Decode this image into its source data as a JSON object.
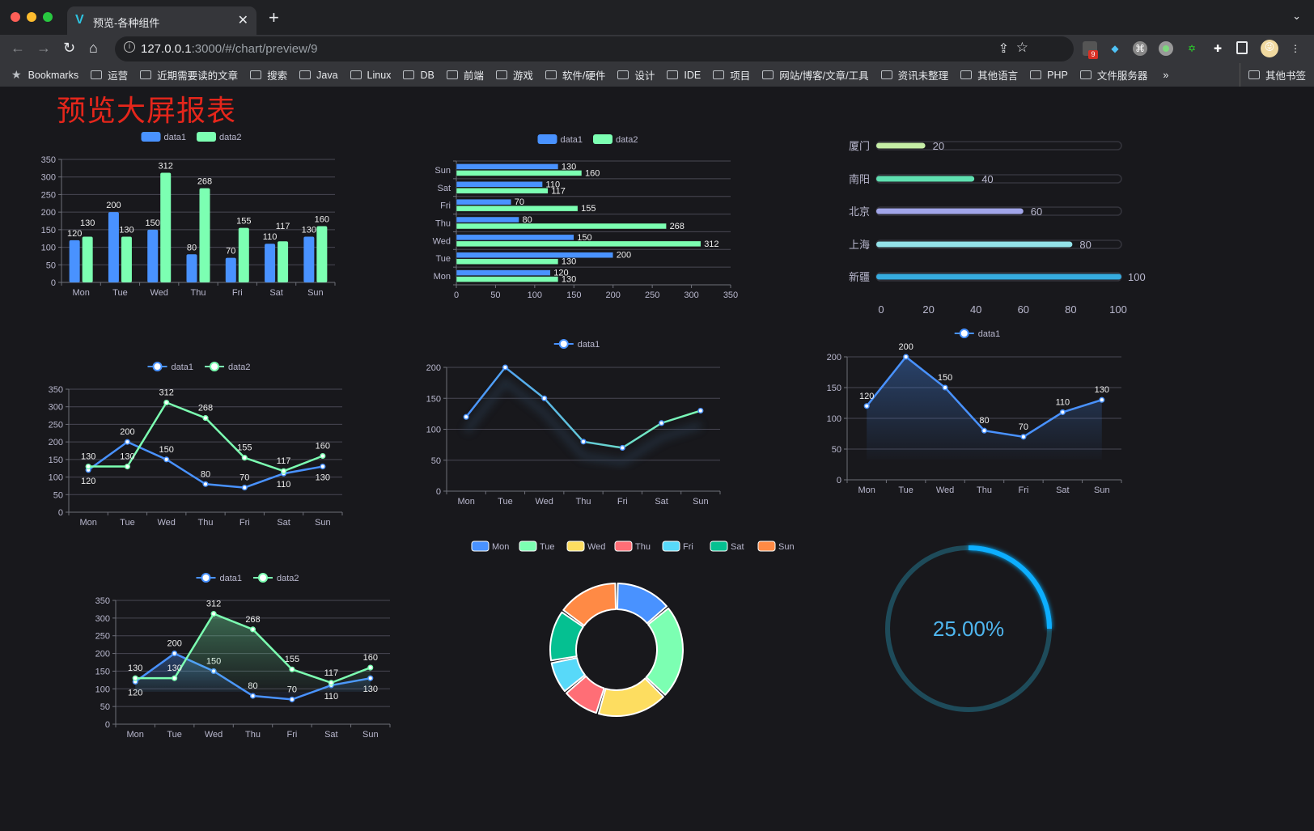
{
  "browser": {
    "tab_title": "预览-各种组件",
    "url_host": "127.0.0.1",
    "url_rest": ":3000/#/chart/preview/9",
    "extension_badge": "9",
    "bookmarks_label": "Bookmarks",
    "bookmarks": [
      "运营",
      "近期需要读的文章",
      "搜索",
      "Java",
      "Linux",
      "DB",
      "前端",
      "游戏",
      "软件/硬件",
      "设计",
      "IDE",
      "项目",
      "网站/博客/文章/工具",
      "资讯未整理",
      "其他语言",
      "PHP",
      "文件服务器"
    ],
    "more": "»",
    "other_bookmarks": "其他书签"
  },
  "page": {
    "title": "预览大屏报表"
  },
  "colors": {
    "blue": "#4992ff",
    "green": "#7cffb2",
    "yellow": "#fddd60",
    "red": "#ff6e76",
    "cyan": "#58d9f9",
    "teal": "#05c091",
    "orange": "#ff8a45",
    "title_red": "#e5261b",
    "gauge": "#10aeff"
  },
  "chart_data": [
    {
      "type": "bar",
      "categories": [
        "Mon",
        "Tue",
        "Wed",
        "Thu",
        "Fri",
        "Sat",
        "Sun"
      ],
      "ylim": [
        0,
        350
      ],
      "yticks": [
        0,
        50,
        100,
        150,
        200,
        250,
        300,
        350
      ],
      "legend": "top",
      "grid": true,
      "series": [
        {
          "name": "data1",
          "values": [
            120,
            200,
            150,
            80,
            70,
            110,
            130
          ]
        },
        {
          "name": "data2",
          "values": [
            130,
            130,
            312,
            268,
            155,
            117,
            160
          ]
        }
      ]
    },
    {
      "type": "bar",
      "orientation": "horizontal",
      "categories": [
        "Mon",
        "Tue",
        "Wed",
        "Thu",
        "Fri",
        "Sat",
        "Sun"
      ],
      "xlim": [
        0,
        350
      ],
      "xticks": [
        0,
        50,
        100,
        150,
        200,
        250,
        300,
        350
      ],
      "legend": "top",
      "grid": true,
      "series": [
        {
          "name": "data1",
          "values": [
            120,
            200,
            150,
            80,
            70,
            110,
            130
          ]
        },
        {
          "name": "data2",
          "values": [
            130,
            130,
            312,
            268,
            155,
            117,
            160
          ]
        }
      ]
    },
    {
      "type": "bar",
      "orientation": "horizontal",
      "style": "progress",
      "categories": [
        "厦门",
        "南阳",
        "北京",
        "上海",
        "新疆"
      ],
      "values": [
        20,
        40,
        60,
        80,
        100
      ],
      "xlim": [
        0,
        100
      ],
      "xticks": [
        0,
        20,
        40,
        60,
        80,
        100
      ],
      "colors": [
        "#c6eea6",
        "#5fdfb0",
        "#a2a6ea",
        "#94e3ea",
        "#36ace0"
      ]
    },
    {
      "type": "line",
      "categories": [
        "Mon",
        "Tue",
        "Wed",
        "Thu",
        "Fri",
        "Sat",
        "Sun"
      ],
      "ylim": [
        0,
        350
      ],
      "yticks": [
        0,
        50,
        100,
        150,
        200,
        250,
        300,
        350
      ],
      "legend": "top",
      "grid": true,
      "series": [
        {
          "name": "data1",
          "values": [
            120,
            200,
            150,
            80,
            70,
            110,
            130
          ]
        },
        {
          "name": "data2",
          "values": [
            130,
            130,
            312,
            268,
            155,
            117,
            160
          ]
        }
      ]
    },
    {
      "type": "line",
      "style": "gradient",
      "categories": [
        "Mon",
        "Tue",
        "Wed",
        "Thu",
        "Fri",
        "Sat",
        "Sun"
      ],
      "ylim": [
        0,
        200
      ],
      "yticks": [
        0,
        50,
        100,
        150,
        200
      ],
      "legend": "top",
      "grid": true,
      "series": [
        {
          "name": "data1",
          "values": [
            120,
            200,
            150,
            80,
            70,
            110,
            130
          ]
        }
      ]
    },
    {
      "type": "area",
      "categories": [
        "Mon",
        "Tue",
        "Wed",
        "Thu",
        "Fri",
        "Sat",
        "Sun"
      ],
      "ylim": [
        0,
        200
      ],
      "yticks": [
        0,
        50,
        100,
        150,
        200
      ],
      "legend": "top",
      "grid": true,
      "series": [
        {
          "name": "data1",
          "values": [
            120,
            200,
            150,
            80,
            70,
            110,
            130
          ]
        }
      ]
    },
    {
      "type": "area",
      "categories": [
        "Mon",
        "Tue",
        "Wed",
        "Thu",
        "Fri",
        "Sat",
        "Sun"
      ],
      "ylim": [
        0,
        350
      ],
      "yticks": [
        0,
        50,
        100,
        150,
        200,
        250,
        300,
        350
      ],
      "legend": "top",
      "grid": true,
      "series": [
        {
          "name": "data1",
          "values": [
            120,
            200,
            150,
            80,
            70,
            110,
            130
          ]
        },
        {
          "name": "data2",
          "values": [
            130,
            130,
            312,
            268,
            155,
            117,
            160
          ]
        }
      ]
    },
    {
      "type": "pie",
      "style": "donut",
      "legend": "top",
      "categories": [
        "Mon",
        "Tue",
        "Wed",
        "Thu",
        "Fri",
        "Sat",
        "Sun"
      ],
      "values": [
        120,
        200,
        150,
        80,
        70,
        110,
        130
      ]
    },
    {
      "type": "gauge",
      "value": 0.25,
      "label": "25.00%"
    }
  ]
}
